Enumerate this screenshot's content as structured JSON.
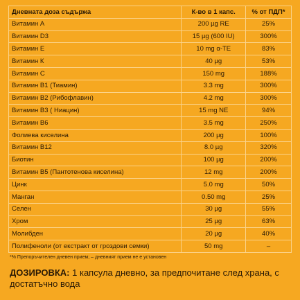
{
  "table": {
    "header": [
      "Дневната доза съдържа",
      "К-во в 1 капс.",
      "% от ПДП*"
    ],
    "rows": [
      [
        "Витамин А",
        "200 µg RE",
        "25%"
      ],
      [
        "Витамин D3",
        "15 µg (600 IU)",
        "300%"
      ],
      [
        "Витамин Е",
        "10 mg α-TE",
        "83%"
      ],
      [
        "Витамин К",
        "40 µg",
        "53%"
      ],
      [
        "Витамин С",
        "150 mg",
        "188%"
      ],
      [
        "Витамин В1 (Тиамин)",
        "3.3 mg",
        "300%"
      ],
      [
        "Витамин В2 (Рибофлавин)",
        "4.2 mg",
        "300%"
      ],
      [
        "Витамин В3 ( Ниацин)",
        "15 mg NE",
        "94%"
      ],
      [
        "Витамин В6",
        "3.5 mg",
        "250%"
      ],
      [
        "Фолиева киселина",
        "200 µg",
        "100%"
      ],
      [
        "Витамин В12",
        "8.0 µg",
        "320%"
      ],
      [
        "Биотин",
        "100 µg",
        "200%"
      ],
      [
        "Витамин В5 (Пантотенова киселина)",
        "12 mg",
        "200%"
      ],
      [
        "Цинк",
        "5.0 mg",
        "50%"
      ],
      [
        "Манган",
        "0.50 mg",
        "25%"
      ],
      [
        "Селен",
        "30 µg",
        "55%"
      ],
      [
        "Хром",
        "25 µg",
        "63%"
      ],
      [
        "Молибден",
        "20 µg",
        "40%"
      ],
      [
        "Полифеноли (от екстракт от гроздови семки)",
        "50 mg",
        "–"
      ]
    ]
  },
  "footnote": "*% Препоръчителен дневен прием; – дневният прием не е установен",
  "dosage": {
    "label": "ДОЗИРОВКА:",
    "text": "1 капсула дневно, за предпочитане след храна, с достатъчно вода"
  }
}
